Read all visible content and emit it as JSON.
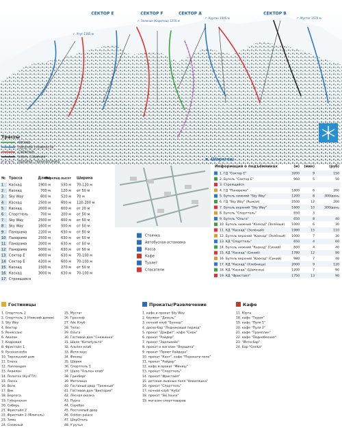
{
  "map": {
    "sectors": [
      "СЕКТОР E",
      "СЕКТОР F",
      "СЕКТОР A",
      "СЕКТОР B"
    ],
    "peaks": [
      "г. Зеленая (Каритеш) 1270 м",
      "г. Курган 1045 м",
      "г. Мустаг 1570 м",
      "г. Утуг 1165 м"
    ],
    "village": "п. Шерегеш"
  },
  "trails_legend": {
    "title": "Трассы",
    "items": [
      "легкие",
      "средней сложности",
      "сложные",
      "очень сложные",
      "просека, технологичка"
    ]
  },
  "trails_table": {
    "headers": [
      "№",
      "Трасса",
      "Длина",
      "Перепад высот",
      "Ширина"
    ],
    "rows": [
      [
        "1",
        "Каскад",
        "1900 м",
        "530 м",
        "70-120 м"
      ],
      [
        "2",
        "Каскад",
        "700 м",
        "120 м",
        "от 50 м"
      ],
      [
        "3",
        "Sky Way",
        "600 м",
        "520 м",
        "70 м"
      ],
      [
        "4",
        "Каскад",
        "2500 м",
        "600 м",
        "120-200 м"
      ],
      [
        "5",
        "Каскад",
        "2000 м",
        "600 м",
        "от 20 м"
      ],
      [
        "6",
        "Спорттель",
        "700 м",
        "200 м",
        "от 50 м"
      ],
      [
        "7",
        "Sky Way",
        "2500 м",
        "600 м",
        "от 50 м"
      ],
      [
        "8",
        "Sky Way",
        "1600 м",
        "500 м",
        "от 50 м"
      ],
      [
        "9",
        "Панорама",
        "2200 м",
        "630 м",
        "от 50 м"
      ],
      [
        "10",
        "Панорама",
        "2500 м",
        "630 м",
        "от 50 м"
      ],
      [
        "11",
        "Панорама",
        "2000 м",
        "630 м",
        "от 50 м"
      ],
      [
        "12",
        "Панорама",
        "5000 м",
        "630 м",
        "от 50 м"
      ],
      [
        "13",
        "Сектор Е",
        "4000 м",
        "630 м",
        "70-100 м"
      ],
      [
        "14",
        "Сектор Е",
        "4200 м",
        "600 м",
        "70-100 м"
      ],
      [
        "15",
        "Каскад",
        "1500 м",
        "270 м",
        "от 50 м"
      ],
      [
        "16",
        "Каскад",
        "3000 м",
        "630 м",
        "70-100 м"
      ],
      [
        "17",
        "Строящаяся",
        "",
        "",
        ""
      ]
    ]
  },
  "icons": [
    "Стоянка",
    "Автобусная остановка",
    "Касса",
    "Кафе",
    "Туалет",
    "Спасатели"
  ],
  "lifts": {
    "title": "Информация о подъёмниках",
    "headers": [
      "(м)",
      "(мин)",
      "(руб)"
    ],
    "rows": [
      [
        "1. ГД \"Сектор Е\"",
        "3200",
        "9",
        "150"
      ],
      [
        "2. Бугель \"Сектор Е\"",
        "960",
        "5",
        "50"
      ],
      [
        "3. Строящийся",
        "",
        "",
        ""
      ],
      [
        "4. ГД \"Панорама\"",
        "1800",
        "6",
        "200"
      ],
      [
        "5. Бугель нижний \"Sky Way\"",
        "1200",
        "8",
        "300/день"
      ],
      [
        "6. ГД \"Sky Way\" (Рыжая)",
        "2500",
        "12",
        "200"
      ],
      [
        "7. Бугель верхний \"Sky Way\"",
        "1600",
        "10",
        "300/день"
      ],
      [
        "8. Бугель \"Спорттель\"",
        "650",
        "3",
        ""
      ],
      [
        "9. Бугель \"Ольга\"",
        "650",
        "8",
        "40"
      ],
      [
        "10. Бугель нижний \"Каскад\" (Зелёный)",
        "1000",
        "6",
        "30"
      ],
      [
        "11. КД \"Каскад\" (Зелёный)",
        "1980",
        "15",
        "110"
      ],
      [
        "12. Бугель верхний \"Каскад\" (Зелёный)",
        "1000",
        "7",
        "30"
      ],
      [
        "13. КД \"Спорттель\"",
        "650",
        "4",
        "60"
      ],
      [
        "14. Бугель нижний \"Каскад\" (Синий)",
        "600",
        "4",
        "40"
      ],
      [
        "15. КД \"Каскад\" (Синий)",
        "1780",
        "12",
        "90"
      ],
      [
        "16. Бугель верхний \"Каскад\" (Синий)",
        "980",
        "7",
        "40"
      ],
      [
        "17. КД \"Каскад\" (Хлебница)",
        "2000",
        "9",
        "120"
      ],
      [
        "18. КД \"Каскад\" (Шапочка)",
        "1200",
        "7",
        "90"
      ],
      [
        "19. КД \"Фристайл\"",
        "1750",
        "13",
        "90"
      ]
    ]
  },
  "hotels": {
    "title": "Гостиницы",
    "items": [
      "1. Спорттель 2",
      "2. Спорттель 3 (Нижний домик)",
      "3. Sky Way",
      "4. Вектор",
      "5. Ренессанс",
      "6. Авалон",
      "7. Кедровая",
      "8. Фристайл 1",
      "9. Русская изба",
      "10. Тирольский дом",
      "11. Елена",
      "12. Лапландия",
      "13. Аквилон",
      "14. Политех (КузГТУ)",
      "15. Ласка",
      "16. Волк",
      "17. Вик",
      "18. Берлога",
      "19. Губернская",
      "20. Сибирь",
      "21. Фристайл 2",
      "22. Фристайл 2 (Флигель)",
      "23. Зима",
      "24. Снежный",
      "25. Мустаг",
      "26. Гренхоф",
      "27. Айс Клуб",
      "28. Тепас",
      "29. Ольга",
      "30. Гостевой дом \"Снежинка\"",
      "31. Шале \"Катапульта\"",
      "32. Альпен клаб",
      "33. Йети хаус",
      "34. Финиш",
      "35. Шория",
      "36. Спорттель 1",
      "37. Шале \"Альпен клаб\"",
      "38. Гринберг",
      "39. Метелица",
      "40. Гостиный двор \"Таежный\"",
      "41. Гостевой дом \"Виктория\"",
      "42. Лесная сказка",
      "43. Пурга",
      "44. Серебро",
      "45. Постоялый двор",
      "46. Golden palace",
      "47. ШорОтель",
      "48. У ручья"
    ]
  },
  "rentals": {
    "title": "Прокаты/Развлечение",
    "items": [
      "1. кафе и прокат Sky Way",
      "2. боулинг \"Дизель\"",
      "3. ночной клуб \"Бункер\"",
      "4. диско-бар \"Ледниковый период\"",
      "5. прокат \"Дакфит\", кафе \"Смак\"",
      "6. прокат \"Райдер\"",
      "7. прокат \"Эдельвейс\"",
      "8. прокат и магазин \"Вершина\"",
      "9. прокат \"Приют Райдера\"",
      "10. прокат \"Кант\", кафе \"Перекати поле\"",
      "11. прокат \"Райдер\"",
      "12. кафе и прокат \"Финиш\"",
      "13. прокат \"Спорттель\"",
      "14. прокат \"Фристайл\"",
      "15. детские лыжные поля \"Неваляшка\"",
      "16. прокат \"Спорттель\"",
      "17. ночной клуб \"Куба\"",
      "18. прокат \"Ski house\"",
      "19. магазин спорттоваров"
    ]
  },
  "cafes": {
    "title": "Кафе",
    "items": [
      "11. Юрта",
      "18. кафе \"Терем\"",
      "19. кафе \"Пуля 1\"",
      "20. кафе \"Пуля 2\"",
      "21. кафе \"Трамплин\"",
      "22. кафе \"Поднебесное\"",
      "23. \"Йети-бар\"",
      "24. Бар \"Grelka\""
    ]
  }
}
